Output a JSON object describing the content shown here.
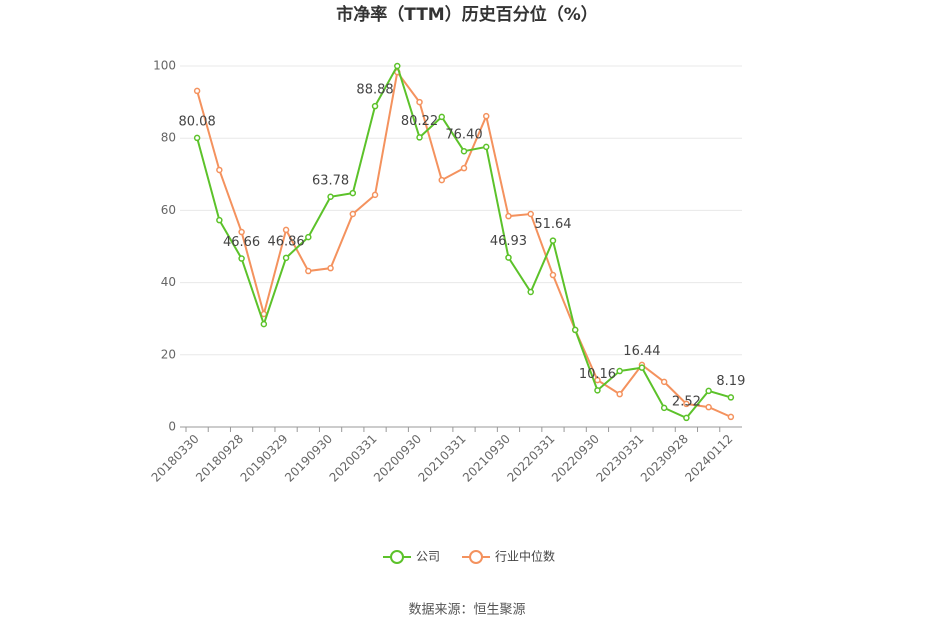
{
  "chart_data": {
    "type": "line",
    "title": "市净率（TTM）历史百分位（%）",
    "source": "数据来源：恒生聚源",
    "categories": [
      "20180330",
      null,
      "20180928",
      null,
      "20190329",
      null,
      "20190930",
      null,
      "20200331",
      null,
      "20200930",
      null,
      "20210331",
      null,
      "20210930",
      null,
      "20220331",
      null,
      "20220930",
      null,
      "20230331",
      null,
      "20230928",
      null,
      "20240112"
    ],
    "series": [
      {
        "name": "公司",
        "color": "#5cc22a",
        "values": [
          80.08,
          57.3,
          46.66,
          28.5,
          46.86,
          52.6,
          63.78,
          64.8,
          88.88,
          100,
          80.22,
          85.9,
          76.4,
          77.6,
          46.93,
          37.4,
          51.64,
          26.9,
          10.16,
          15.5,
          16.44,
          5.3,
          2.52,
          10.0,
          8.19
        ],
        "value_labels": [
          "80.08",
          null,
          "46.66",
          null,
          "46.86",
          null,
          "63.78",
          null,
          "88.88",
          null,
          "80.22",
          null,
          "76.40",
          null,
          "46.93",
          null,
          "51.64",
          null,
          "10.16",
          null,
          "16.44",
          null,
          "2.52",
          null,
          "8.19"
        ]
      },
      {
        "name": "行业中位数",
        "color": "#f4925e",
        "values": [
          93.1,
          71.2,
          54.0,
          31.3,
          54.6,
          43.2,
          44.0,
          59.0,
          64.3,
          98.3,
          90.0,
          68.4,
          71.7,
          86.1,
          58.4,
          59.0,
          42.1,
          26.9,
          13.0,
          9.1,
          17.2,
          12.5,
          6.4,
          5.5,
          2.8
        ]
      }
    ],
    "ylim": [
      0,
      100
    ],
    "yticks": [
      0,
      20,
      40,
      60,
      80,
      100
    ],
    "grid": true,
    "legend": "bottom"
  }
}
